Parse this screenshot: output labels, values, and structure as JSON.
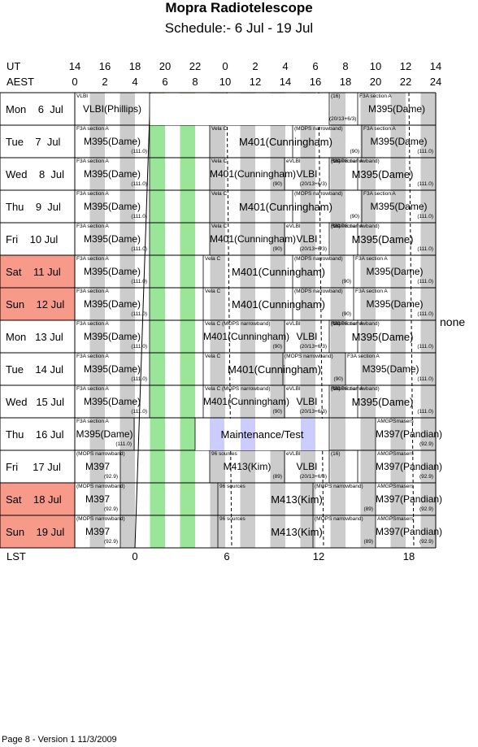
{
  "title": "Mopra Radiotelescope",
  "subtitle": "Schedule:- 6  Jul - 19 Jul",
  "header": {
    "ut_label": "UT",
    "aest_label": "AEST",
    "ut_ticks": [
      "14",
      "16",
      "18",
      "20",
      "22",
      "0",
      "2",
      "4",
      "6",
      "8",
      "10",
      "12",
      "14"
    ],
    "aest_ticks": [
      "0",
      "2",
      "4",
      "6",
      "8",
      "10",
      "12",
      "14",
      "16",
      "18",
      "20",
      "22",
      "24"
    ]
  },
  "lst": {
    "label": "LST",
    "ticks": [
      "0",
      "6",
      "12",
      "18"
    ]
  },
  "side_note": "none",
  "footer": "Page 8 - Version 1  11/3/2009",
  "colors": {
    "weekend": "#f79a8a",
    "green": "#99e699",
    "grey": "#cccccc",
    "maint": "#ccccff"
  },
  "days": [
    {
      "label": "Mon    6  Jul",
      "weekend": false
    },
    {
      "label": "Tue    7  Jul",
      "weekend": false
    },
    {
      "label": "Wed    8  Jul",
      "weekend": false
    },
    {
      "label": "Thu    9  Jul",
      "weekend": false
    },
    {
      "label": "Fri    10 Jul",
      "weekend": false
    },
    {
      "label": "Sat    11 Jul",
      "weekend": true
    },
    {
      "label": "Sun    12 Jul",
      "weekend": true
    },
    {
      "label": "Mon   13 Jul",
      "weekend": false
    },
    {
      "label": "Tue    14 Jul",
      "weekend": false
    },
    {
      "label": "Wed   15 Jul",
      "weekend": false
    },
    {
      "label": "Thu    16 Jul",
      "weekend": false
    },
    {
      "label": "Fri     17 Jul",
      "weekend": false
    },
    {
      "label": "Sat    18 Jul",
      "weekend": true
    },
    {
      "label": "Sun    19 Jul",
      "weekend": true
    }
  ],
  "rows": [
    [
      {
        "s": "VLBI",
        "m": "VLBI(Phillips)",
        "e": ""
      },
      {
        "s": "(16)",
        "m": "",
        "e": "(20/13+6/3)"
      },
      {
        "s": "F3A section A",
        "m": "M395(Dame)",
        "e": ""
      }
    ],
    [
      {
        "s": "F3A section A",
        "m": "M395(Dame)",
        "e": "(111.0)"
      },
      {
        "s": "Vela C",
        "m": "M401(Cunningham)",
        "e": ""
      },
      {
        "s": "(MOPS narrowband)",
        "m": "",
        "e": "(90)"
      },
      {
        "s": "F3A section A",
        "m": "M395(Dame)",
        "e": "(111.0)"
      }
    ],
    [
      {
        "s": "F3A section A",
        "m": "M395(Dame)",
        "e": "(111.0)"
      },
      {
        "s": "Vela C",
        "m": "M401(Cunningham)",
        "e": "(90)"
      },
      {
        "s": "eVLBI",
        "m": "VLBI",
        "e": "(20/13+6/3)"
      },
      {
        "s": "(16)",
        "m": "",
        "e": ""
      },
      {
        "s": "F3A section A",
        "m": "M395(Dame)",
        "e": "(111.0)"
      },
      {
        "s": "(MOPS narrowband)",
        "m": "",
        "e": ""
      }
    ],
    [
      {
        "s": "F3A section A",
        "m": "M395(Dame)",
        "e": "(111.0)"
      },
      {
        "s": "Vela C",
        "m": "M401(Cunningham)",
        "e": ""
      },
      {
        "s": "(MOPS narrowband)",
        "m": "",
        "e": "(90)"
      },
      {
        "s": "F3A section A",
        "m": "M395(Dame)",
        "e": "(111.0)"
      }
    ],
    [
      {
        "s": "F3A section A",
        "m": "M395(Dame)",
        "e": "(111.0)"
      },
      {
        "s": "Vela C",
        "m": "M401(Cunningham)",
        "e": "(90)"
      },
      {
        "s": "eVLBI",
        "m": "VLBI",
        "e": "(20/13+6/3)"
      },
      {
        "s": "(16)",
        "m": "",
        "e": ""
      },
      {
        "s": "F3A section A",
        "m": "M395(Dame)",
        "e": "(111.0)"
      },
      {
        "s": "(MOPS narrowband)",
        "m": "",
        "e": ""
      }
    ],
    [
      {
        "s": "F3A section A",
        "m": "M395(Dame)",
        "e": "(111.0)"
      },
      {
        "s": "Vela C",
        "m": "M401(Cunningham)",
        "e": ""
      },
      {
        "s": "(MOPS narrowband)",
        "m": "",
        "e": "(90)"
      },
      {
        "s": "F3A section A",
        "m": "M395(Dame)",
        "e": "(111.0)"
      }
    ],
    [
      {
        "s": "F3A section A",
        "m": "M395(Dame)",
        "e": "(111.0)"
      },
      {
        "s": "Vela C",
        "m": "M401(Cunningham)",
        "e": ""
      },
      {
        "s": "(MOPS narrowband)",
        "m": "",
        "e": "(90)"
      },
      {
        "s": "F3A section A",
        "m": "M395(Dame)",
        "e": "(111.0)"
      }
    ],
    [
      {
        "s": "F3A section A",
        "m": "M395(Dame)",
        "e": "(111.0)"
      },
      {
        "s": "Vela C (MOPS narrowband)",
        "m": "M401(Cunningham)",
        "e": "(90)"
      },
      {
        "s": "eVLBI",
        "m": "VLBI",
        "e": "(20/13+6/3)"
      },
      {
        "s": "(16)",
        "m": "",
        "e": ""
      },
      {
        "s": "F3A section A",
        "m": "M395(Dame)",
        "e": "(111.0)"
      },
      {
        "s": "(MOPS narrowband)",
        "m": "",
        "e": ""
      }
    ],
    [
      {
        "s": "F3A section A",
        "m": "M395(Dame)",
        "e": "(111.0)"
      },
      {
        "s": "Vela C",
        "m": "M401(Cunningham)",
        "e": ""
      },
      {
        "s": "(MOPS narrowband)",
        "m": "",
        "e": "(90)"
      },
      {
        "s": "F3A section A",
        "m": "M395(Dame)",
        "e": "(111.0)"
      }
    ],
    [
      {
        "s": "F3A section A",
        "m": "M395(Dame)",
        "e": "(111.0)"
      },
      {
        "s": "Vela C (MOPS narrowband)",
        "m": "M401(Cunningham)",
        "e": "(90)"
      },
      {
        "s": "eVLBI",
        "m": "VLBI",
        "e": "(20/13+6/3)"
      },
      {
        "s": "(16)",
        "m": "",
        "e": ""
      },
      {
        "s": "F3A section A",
        "m": "M395(Dame)",
        "e": "(111.0)"
      },
      {
        "s": "(MOPS narrowband)",
        "m": "",
        "e": ""
      }
    ],
    [
      {
        "s": "F3A section A",
        "m": "M395(Dame)",
        "e": "(111.0)"
      },
      {
        "s": "",
        "m": "Maintenance/Test",
        "e": ""
      },
      {
        "s": "AMGPSmasers",
        "m": "M397(Pandian)",
        "e": "(92.9)"
      }
    ],
    [
      {
        "s": "(MOPS narrowband)",
        "m": "M397",
        "e": "(92.9)"
      },
      {
        "s": "96 sources",
        "m": "M413(Kim)",
        "e": "(89)"
      },
      {
        "s": "eVLBI",
        "m": "VLBI",
        "e": "(20/13+6/3)"
      },
      {
        "s": "(16)",
        "m": "",
        "e": ""
      },
      {
        "s": "AMGPSmasers",
        "m": "M397(Pandian)",
        "e": "(92.9)"
      }
    ],
    [
      {
        "s": "(MOPS narrowband)",
        "m": "M397",
        "e": "(92.9)"
      },
      {
        "s": "96 sources",
        "m": "M413(Kim)",
        "e": "(89)"
      },
      {
        "s": "(MOPS narrowband)",
        "m": "",
        "e": ""
      },
      {
        "s": "AMGPSmasers",
        "m": "M397(Pandian)",
        "e": "(92.9)"
      }
    ],
    [
      {
        "s": "(MOPS narrowband)",
        "m": "M397",
        "e": "(92.9)"
      },
      {
        "s": "96 sources",
        "m": "M413(Kim)",
        "e": "(89)"
      },
      {
        "s": "(MOPS narrowband)",
        "m": "",
        "e": ""
      },
      {
        "s": "AMGPSmasers",
        "m": "M397(Pandian)",
        "e": "(92.9)"
      }
    ]
  ]
}
